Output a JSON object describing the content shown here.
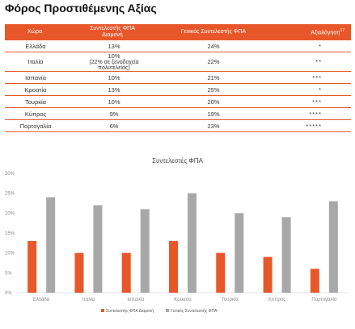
{
  "page": {
    "title": "Φόρος Προστιθέμενης Αξίας"
  },
  "table": {
    "headers": {
      "country": "Χώρα",
      "accommodation": "Συντελεστής ΦΠΑ\nΔιαμονή",
      "general": "Γενικός Συντελεστής ΦΠΑ",
      "rating": "Αξιολόγηση"
    },
    "rating_footnote": "17",
    "rows": [
      {
        "country": "Ελλάδα",
        "accommodation": "13%",
        "accommodation_note": "",
        "general": "24%",
        "rating": "*"
      },
      {
        "country": "Ιταλία",
        "accommodation": "10%",
        "accommodation_note": "(22% σε ξενοδοχεία πολυτελείας)",
        "general": "22%",
        "rating": "**"
      },
      {
        "country": "Ισπανία",
        "accommodation": "10%",
        "accommodation_note": "",
        "general": "21%",
        "rating": "***"
      },
      {
        "country": "Κροατία",
        "accommodation": "13%",
        "accommodation_note": "",
        "general": "25%",
        "rating": "*"
      },
      {
        "country": "Τουρκία",
        "accommodation": "10%",
        "accommodation_note": "",
        "general": "20%",
        "rating": "***"
      },
      {
        "country": "Κύπρος",
        "accommodation": "9%",
        "accommodation_note": "",
        "general": "19%",
        "rating": "****"
      },
      {
        "country": "Πορτογαλία",
        "accommodation": "6%",
        "accommodation_note": "",
        "general": "23%",
        "rating": "*****"
      }
    ]
  },
  "colors": {
    "accent": "#e8572a",
    "secondary": "#a8a8a8"
  },
  "chart_data": {
    "type": "bar",
    "title": "Συντελεστές ΦΠΑ",
    "categories": [
      "Ελλάδα",
      "Ιταλία",
      "Ισπανία",
      "Κροατία",
      "Τουρκία",
      "Κύπρος",
      "Πορτογαλία"
    ],
    "series": [
      {
        "name": "Συντελεστής ΦΠΑ Διαμονή",
        "values": [
          13,
          10,
          10,
          13,
          10,
          9,
          6
        ],
        "color": "#e8572a"
      },
      {
        "name": "Γενικός Συντελεστής ΦΠΑ",
        "values": [
          24,
          22,
          21,
          25,
          20,
          19,
          23
        ],
        "color": "#a8a8a8"
      }
    ],
    "y_ticks": [
      "0%",
      "5%",
      "10%",
      "15%",
      "20%",
      "25%",
      "30%"
    ],
    "ylim": [
      0,
      30
    ],
    "grid": false,
    "legend": "bottom-center"
  }
}
